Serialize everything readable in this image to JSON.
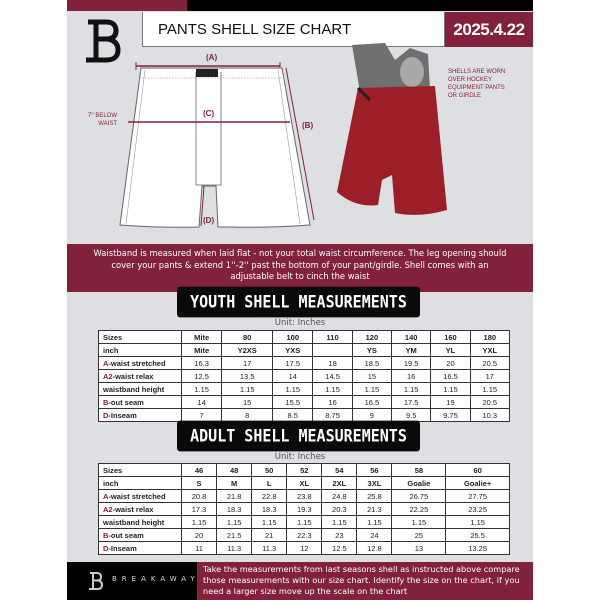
{
  "header": {
    "title": "PANTS SHELL SIZE CHART",
    "date": "2025.4.22",
    "logo": "B"
  },
  "diagram": {
    "label_a": "(A)",
    "label_b": "(B)",
    "label_c": "(C)",
    "label_d": "(D)",
    "c_note": "7'' BELOW WAIST"
  },
  "photo_note": "SHELLS ARE WORN OVER HOCKEY EQUIPMENT PANTS OR GIRDLE",
  "banner": "Waistband is measured when laid flat - not your total waist circumference. The leg opening should cover your pants & extend 1''-2'' past the bottom of your pant/girdle. Shell comes with an adjustable belt to cinch the waist",
  "youth": {
    "title": "YOUTH SHELL MEASUREMENTS",
    "unit": "Unit: Inches",
    "rows": [
      {
        "prefix": "",
        "label": "Sizes",
        "values": [
          "Mite",
          "80",
          "100",
          "110",
          "120",
          "140",
          "160",
          "180"
        ]
      },
      {
        "prefix": "",
        "label": "inch",
        "values": [
          "Mite",
          "Y2XS",
          "YXS",
          "",
          "YS",
          "YM",
          "YL",
          "YXL"
        ]
      },
      {
        "prefix": "A",
        "label": "-waist stretched",
        "values": [
          "16.3",
          "17",
          "17.5",
          "18",
          "18.5",
          "19.5",
          "20",
          "20.5"
        ]
      },
      {
        "prefix": "A2",
        "label": "-waist relax",
        "values": [
          "12.5",
          "13.5",
          "14",
          "14.5",
          "15",
          "16",
          "16.5",
          "17"
        ]
      },
      {
        "prefix": "",
        "label": "waistband height",
        "values": [
          "1.15",
          "1.15",
          "1.15",
          "1.15",
          "1.15",
          "1.15",
          "1.15",
          "1.15"
        ]
      },
      {
        "prefix": "B",
        "label": "-out seam",
        "values": [
          "14",
          "15",
          "15.5",
          "16",
          "16.5",
          "17.5",
          "19",
          "20.5"
        ]
      },
      {
        "prefix": "D",
        "label": "-Inseam",
        "values": [
          "7",
          "8",
          "8.5",
          "8.75",
          "9",
          "9.5",
          "9.75",
          "10.3"
        ]
      }
    ]
  },
  "adult": {
    "title": "ADULT SHELL MEASUREMENTS",
    "unit": "Unit: Inches",
    "rows": [
      {
        "prefix": "",
        "label": "Sizes",
        "values": [
          "46",
          "48",
          "50",
          "52",
          "54",
          "56",
          "58",
          "60"
        ]
      },
      {
        "prefix": "",
        "label": "inch",
        "values": [
          "S",
          "M",
          "L",
          "XL",
          "2XL",
          "3XL",
          "Goalie",
          "Goalie+"
        ]
      },
      {
        "prefix": "A",
        "label": "-waist stretched",
        "values": [
          "20.8",
          "21.8",
          "22.8",
          "23.8",
          "24.8",
          "25.8",
          "26.75",
          "27.75"
        ]
      },
      {
        "prefix": "A2",
        "label": "-waist relax",
        "values": [
          "17.3",
          "18.3",
          "18.3",
          "19.3",
          "20.3",
          "21.3",
          "22.25",
          "23.25"
        ]
      },
      {
        "prefix": "",
        "label": "waistband height",
        "values": [
          "1.15",
          "1.15",
          "1.15",
          "1.15",
          "1.15",
          "1.15",
          "1.15",
          "1.15"
        ]
      },
      {
        "prefix": "B",
        "label": "-out seam",
        "values": [
          "20",
          "21.5",
          "21",
          "22.3",
          "23",
          "24",
          "25",
          "25.5"
        ]
      },
      {
        "prefix": "D",
        "label": "-Inseam",
        "values": [
          "11",
          "11.3",
          "11.3",
          "12",
          "12.5",
          "12.8",
          "13",
          "13.25"
        ]
      }
    ]
  },
  "footer": {
    "brand": "BREAKAWAY",
    "text": "Take the measurements from last seasons shell as instructed above compare those measurements  with our size chart. Identify the size on the chart, if you need a larger size move up the scale on the chart"
  },
  "colors": {
    "accent": "#82213b",
    "background": "#dedfe3",
    "dark": "#0a0a0a"
  }
}
